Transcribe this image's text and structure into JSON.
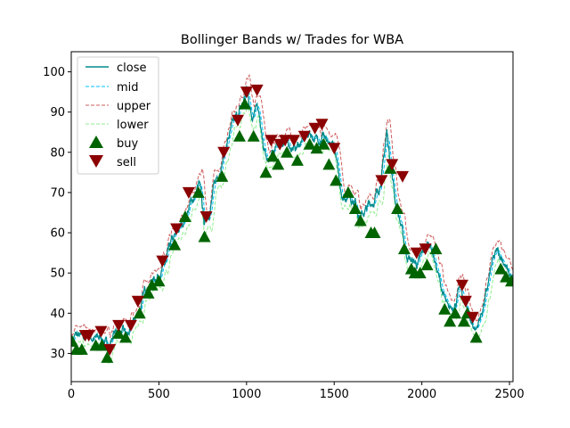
{
  "chart_data": {
    "type": "line",
    "title": "Bollinger Bands w/ Trades for WBA",
    "xlabel": "",
    "ylabel": "",
    "xlim": [
      0,
      2520
    ],
    "ylim": [
      23,
      105
    ],
    "xticks": [
      0,
      500,
      1000,
      1500,
      2000,
      2500
    ],
    "yticks": [
      30,
      40,
      50,
      60,
      70,
      80,
      90,
      100
    ],
    "grid": false,
    "legend_position": "top-left",
    "close_keypoints": [
      [
        0,
        33
      ],
      [
        30,
        34.5
      ],
      [
        60,
        33.5
      ],
      [
        100,
        34.5
      ],
      [
        140,
        33.5
      ],
      [
        180,
        34
      ],
      [
        210,
        31
      ],
      [
        240,
        35
      ],
      [
        280,
        35.5
      ],
      [
        320,
        34
      ],
      [
        360,
        38
      ],
      [
        400,
        42
      ],
      [
        430,
        47
      ],
      [
        460,
        48
      ],
      [
        500,
        50
      ],
      [
        540,
        52
      ],
      [
        570,
        57
      ],
      [
        600,
        59
      ],
      [
        630,
        62
      ],
      [
        660,
        65
      ],
      [
        700,
        69
      ],
      [
        730,
        72
      ],
      [
        760,
        62
      ],
      [
        790,
        66
      ],
      [
        820,
        72
      ],
      [
        860,
        78
      ],
      [
        900,
        84
      ],
      [
        940,
        88
      ],
      [
        980,
        92
      ],
      [
        1000,
        96
      ],
      [
        1030,
        89
      ],
      [
        1060,
        94
      ],
      [
        1090,
        82
      ],
      [
        1120,
        77
      ],
      [
        1160,
        80
      ],
      [
        1200,
        83
      ],
      [
        1240,
        82
      ],
      [
        1280,
        81
      ],
      [
        1320,
        83
      ],
      [
        1360,
        85
      ],
      [
        1400,
        83
      ],
      [
        1440,
        85
      ],
      [
        1470,
        80
      ],
      [
        1500,
        82
      ],
      [
        1520,
        75
      ],
      [
        1550,
        69
      ],
      [
        1580,
        70
      ],
      [
        1620,
        68
      ],
      [
        1650,
        64
      ],
      [
        1690,
        66
      ],
      [
        1720,
        68
      ],
      [
        1750,
        70
      ],
      [
        1780,
        77
      ],
      [
        1800,
        85
      ],
      [
        1820,
        78
      ],
      [
        1850,
        68
      ],
      [
        1880,
        62
      ],
      [
        1910,
        55
      ],
      [
        1940,
        53
      ],
      [
        1980,
        52
      ],
      [
        2010,
        55
      ],
      [
        2040,
        58
      ],
      [
        2060,
        56
      ],
      [
        2090,
        50
      ],
      [
        2120,
        45
      ],
      [
        2150,
        40
      ],
      [
        2180,
        42
      ],
      [
        2220,
        46
      ],
      [
        2250,
        42
      ],
      [
        2280,
        38
      ],
      [
        2310,
        36
      ],
      [
        2340,
        40
      ],
      [
        2370,
        45
      ],
      [
        2400,
        52
      ],
      [
        2430,
        55
      ],
      [
        2460,
        54
      ],
      [
        2490,
        50
      ],
      [
        2520,
        48
      ]
    ],
    "series": [
      {
        "name": "close",
        "color": "#008b8b",
        "style": "solid"
      },
      {
        "name": "mid",
        "color": "#00bfff",
        "style": "dashed"
      },
      {
        "name": "upper",
        "color": "#cd5c5c",
        "style": "dashed"
      },
      {
        "name": "lower",
        "color": "#90ee90",
        "style": "dashed"
      }
    ],
    "buy": {
      "name": "buy",
      "color": "#006400",
      "marker": "triangle-up",
      "points": [
        [
          5,
          33
        ],
        [
          30,
          31
        ],
        [
          60,
          31
        ],
        [
          140,
          32
        ],
        [
          175,
          32
        ],
        [
          205,
          29
        ],
        [
          270,
          35
        ],
        [
          310,
          34
        ],
        [
          390,
          40
        ],
        [
          440,
          45
        ],
        [
          460,
          47
        ],
        [
          500,
          48
        ],
        [
          590,
          57
        ],
        [
          650,
          64
        ],
        [
          725,
          70
        ],
        [
          760,
          59
        ],
        [
          860,
          74
        ],
        [
          960,
          84
        ],
        [
          990,
          92
        ],
        [
          1040,
          84
        ],
        [
          1110,
          75
        ],
        [
          1150,
          79
        ],
        [
          1180,
          77
        ],
        [
          1230,
          80
        ],
        [
          1290,
          78
        ],
        [
          1360,
          82
        ],
        [
          1400,
          81
        ],
        [
          1440,
          82
        ],
        [
          1470,
          77
        ],
        [
          1510,
          73
        ],
        [
          1580,
          70
        ],
        [
          1620,
          66
        ],
        [
          1650,
          63
        ],
        [
          1710,
          60
        ],
        [
          1730,
          60
        ],
        [
          1820,
          76
        ],
        [
          1860,
          66
        ],
        [
          1900,
          56
        ],
        [
          1940,
          51
        ],
        [
          1960,
          50
        ],
        [
          1990,
          50
        ],
        [
          2030,
          52
        ],
        [
          2080,
          56
        ],
        [
          2130,
          41
        ],
        [
          2160,
          38
        ],
        [
          2190,
          40
        ],
        [
          2240,
          38
        ],
        [
          2260,
          40
        ],
        [
          2310,
          34
        ],
        [
          2450,
          51
        ],
        [
          2480,
          49
        ],
        [
          2510,
          48
        ]
      ]
    },
    "sell": {
      "name": "sell",
      "color": "#8b0000",
      "marker": "triangle-down",
      "points": [
        [
          80,
          34.5
        ],
        [
          100,
          34.5
        ],
        [
          170,
          35.5
        ],
        [
          220,
          31
        ],
        [
          270,
          37
        ],
        [
          340,
          37
        ],
        [
          380,
          43
        ],
        [
          520,
          53
        ],
        [
          600,
          61
        ],
        [
          670,
          70
        ],
        [
          770,
          64
        ],
        [
          870,
          80
        ],
        [
          950,
          88
        ],
        [
          1000,
          95
        ],
        [
          1060,
          95.5
        ],
        [
          1140,
          83
        ],
        [
          1190,
          82
        ],
        [
          1220,
          83
        ],
        [
          1270,
          83
        ],
        [
          1330,
          84
        ],
        [
          1390,
          86
        ],
        [
          1430,
          87
        ],
        [
          1500,
          81
        ],
        [
          1770,
          73
        ],
        [
          1830,
          77
        ],
        [
          1890,
          74
        ],
        [
          1970,
          55
        ],
        [
          2020,
          56
        ],
        [
          2230,
          47
        ],
        [
          2250,
          43
        ],
        [
          2290,
          39
        ]
      ]
    }
  }
}
